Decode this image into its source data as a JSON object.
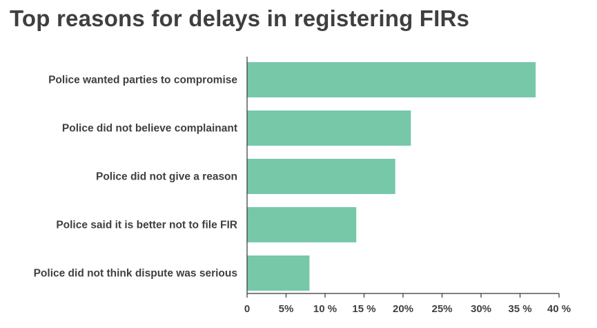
{
  "chart_data": {
    "type": "bar",
    "orientation": "horizontal",
    "title": "Top reasons for delays in registering FIRs",
    "categories": [
      "Police wanted parties to compromise",
      "Police did not believe complainant",
      "Police did not give a reason",
      "Police said it is better not to file FIR",
      "Police did not think dispute was serious"
    ],
    "values": [
      37,
      21,
      19,
      14,
      8
    ],
    "value_unit": "%",
    "xlim": [
      0,
      40
    ],
    "x_ticks": [
      {
        "value": 0,
        "label": "0"
      },
      {
        "value": 5,
        "label": "5%"
      },
      {
        "value": 10,
        "label": "10 %"
      },
      {
        "value": 15,
        "label": "15 %"
      },
      {
        "value": 20,
        "label": "20%"
      },
      {
        "value": 25,
        "label": "25%"
      },
      {
        "value": 30,
        "label": "30%"
      },
      {
        "value": 35,
        "label": "35 %"
      },
      {
        "value": 40,
        "label": "40 %"
      }
    ],
    "bar_color": "#76c8a9",
    "axis_color": "#333333",
    "grid": false,
    "legend": "none"
  }
}
